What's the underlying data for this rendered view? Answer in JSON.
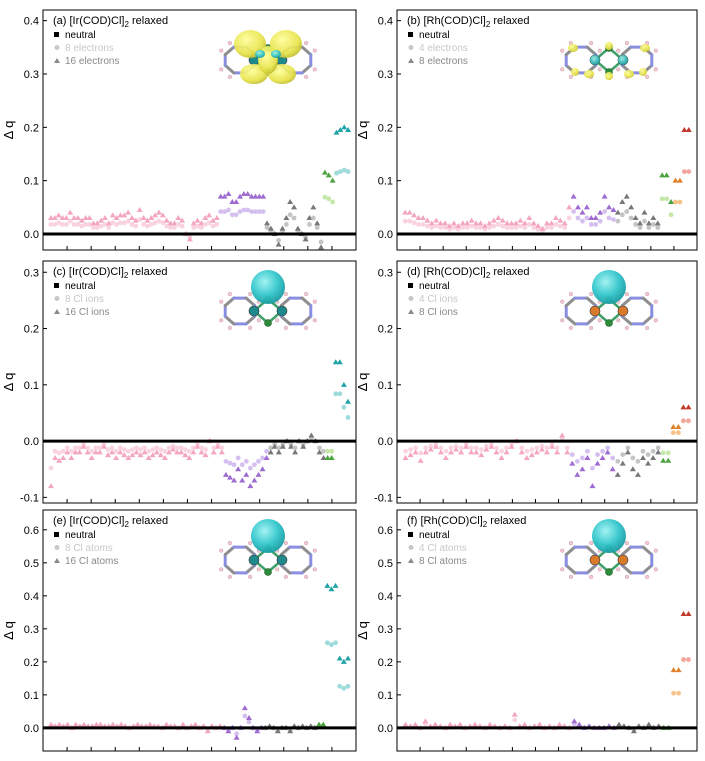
{
  "figure": {
    "ylabel": "Δ q",
    "legend_colors": {
      "neutral": "#000000",
      "light": "#c8c8c8",
      "dark": "#8a8a8a"
    },
    "baseline_color": "#000000"
  },
  "chart_data": [
    {
      "type": "scatter",
      "id": "a",
      "label_prefix": "(a) [Ir(COD)Cl]",
      "label_sub": "2",
      "label_suffix": " relaxed",
      "ylim": [
        -0.03,
        0.42
      ],
      "yticks": [
        0.0,
        0.1,
        0.2,
        0.3,
        0.4
      ],
      "ytick_labels": [
        "0.0",
        "0.1",
        "0.2",
        "0.3",
        "0.4"
      ],
      "legend": [
        "neutral",
        "8 electrons",
        "16 electrons"
      ],
      "inset": "orbital-isosurface-ir",
      "segments": [
        {
          "color": "#f4a6bf",
          "light": "#f9d3df",
          "values": [
            0.03,
            0.03,
            0.035,
            0.03,
            0.03,
            0.04,
            0.03,
            0.03,
            0.025,
            0.03,
            0.03,
            0.02,
            0.02,
            0.025,
            0.03,
            0.02,
            0.035,
            0.03,
            0.035,
            0.035,
            0.04,
            0.03,
            0.025,
            0.045,
            0.03,
            0.025,
            0.03,
            0.035,
            0.04,
            0.035,
            0.025,
            0.02,
            0.02,
            0.03,
            0.025,
            0.0,
            -0.01,
            0.02,
            0.025,
            0.02,
            0.03,
            0.035,
            0.025,
            0.03
          ]
        },
        {
          "color": "#9e6bd0",
          "light": "#d5bff0",
          "values": [
            0.07,
            0.07,
            0.075,
            0.06,
            0.06,
            0.07,
            0.075,
            0.075,
            0.07,
            0.07,
            0.07,
            0.07
          ]
        },
        {
          "color": "#777777",
          "light": "#c4c4c4",
          "values": [
            0.02,
            0.01,
            0.0,
            -0.02,
            0.01,
            0.03,
            0.06,
            0.05,
            0.01,
            0.0,
            -0.01,
            0.03,
            0.05,
            0.02,
            -0.025
          ]
        },
        {
          "color": "#4aa33e",
          "light": "#c4e8a8",
          "values": [
            0.115,
            0.11,
            0.1
          ]
        },
        {
          "color": "#1fa3a8",
          "light": "#9edbdb",
          "values": [
            0.19,
            0.195,
            0.2,
            0.195
          ]
        }
      ]
    },
    {
      "type": "scatter",
      "id": "b",
      "label_prefix": "(b) [Rh(COD)Cl]",
      "label_sub": "2",
      "label_suffix": " relaxed",
      "ylim": [
        -0.03,
        0.42
      ],
      "yticks": [
        0.0,
        0.1,
        0.2,
        0.3,
        0.4
      ],
      "ytick_labels": [
        "0.0",
        "0.1",
        "0.2",
        "0.3",
        "0.4"
      ],
      "legend": [
        "neutral",
        "4 electrons",
        "8 electrons"
      ],
      "inset": "orbital-isosurface-rh",
      "segments": [
        {
          "color": "#f4a6bf",
          "light": "#f9d3df",
          "values": [
            0.04,
            0.04,
            0.035,
            0.03,
            0.03,
            0.025,
            0.02,
            0.025,
            0.02,
            0.02,
            0.015,
            0.02,
            0.015,
            0.02,
            0.02,
            0.025,
            0.02,
            0.02,
            0.015,
            0.02,
            0.025,
            0.03,
            0.025,
            0.02,
            0.02,
            0.02,
            0.025,
            0.02,
            0.03,
            0.02,
            0.015,
            0.01,
            0.02,
            0.02,
            0.03,
            0.025,
            0.02,
            0.05
          ]
        },
        {
          "color": "#9e6bd0",
          "light": "#d5bff0",
          "values": [
            0.07,
            0.05,
            0.04,
            0.05,
            0.03,
            0.03,
            0.04,
            0.07,
            0.05,
            0.045
          ]
        },
        {
          "color": "#777777",
          "light": "#c4c4c4",
          "values": [
            0.04,
            0.06,
            0.07,
            0.05,
            0.03,
            0.02,
            0.04,
            0.02,
            0.03,
            0.02
          ]
        },
        {
          "color": "#4aa33e",
          "light": "#c4e8a8",
          "values": [
            0.11,
            0.11,
            0.06
          ]
        },
        {
          "color": "#e0802a",
          "light": "#f7c38a",
          "values": [
            0.1,
            0.1
          ]
        },
        {
          "color": "#c0392b",
          "light": "#f2a59b",
          "values": [
            0.195,
            0.195
          ]
        }
      ]
    },
    {
      "type": "scatter",
      "id": "c",
      "label_prefix": "(c) [Ir(COD)Cl]",
      "label_sub": "2",
      "label_suffix": " relaxed",
      "ylim": [
        -0.11,
        0.32
      ],
      "yticks": [
        -0.1,
        0.0,
        0.1,
        0.2,
        0.3
      ],
      "ytick_labels": [
        "-0.1",
        "0.0",
        "0.1",
        "0.2",
        "0.3"
      ],
      "legend": [
        "neutral",
        "8 Cl ions",
        "16 Cl ions"
      ],
      "inset": "cl-ion-density-ir",
      "segments": [
        {
          "color": "#f4a6bf",
          "light": "#f9d3df",
          "values": [
            -0.08,
            -0.03,
            -0.035,
            -0.03,
            -0.02,
            -0.03,
            -0.02,
            -0.02,
            -0.01,
            -0.02,
            -0.03,
            -0.02,
            -0.02,
            -0.01,
            -0.025,
            -0.02,
            -0.03,
            -0.02,
            -0.025,
            -0.03,
            -0.025,
            -0.02,
            -0.025,
            -0.02,
            -0.03,
            -0.025,
            -0.02,
            -0.025,
            -0.03,
            -0.02,
            -0.015,
            -0.02,
            -0.02,
            -0.025,
            -0.03,
            -0.02,
            -0.01,
            -0.02,
            -0.025,
            0.0,
            -0.02,
            -0.01,
            -0.02
          ]
        },
        {
          "color": "#9e6bd0",
          "light": "#d5bff0",
          "values": [
            -0.06,
            -0.065,
            -0.07,
            -0.05,
            -0.07,
            -0.06,
            -0.08,
            -0.07,
            -0.06,
            -0.05,
            -0.03
          ]
        },
        {
          "color": "#777777",
          "light": "#c4c4c4",
          "values": [
            -0.02,
            -0.01,
            -0.02,
            -0.01,
            0.0,
            -0.01,
            -0.02,
            0.0,
            -0.01,
            0.0,
            0.01,
            0.0,
            -0.02,
            -0.03
          ]
        },
        {
          "color": "#4aa33e",
          "light": "#c4e8a8",
          "values": [
            -0.03,
            -0.03
          ]
        },
        {
          "color": "#1fa3a8",
          "light": "#9edbdb",
          "values": [
            0.14,
            0.14,
            0.1,
            0.07
          ]
        }
      ]
    },
    {
      "type": "scatter",
      "id": "d",
      "label_prefix": "(d) [Rh(COD)Cl]",
      "label_sub": "2",
      "label_suffix": " relaxed",
      "ylim": [
        -0.11,
        0.32
      ],
      "yticks": [
        -0.1,
        0.0,
        0.1,
        0.2,
        0.3
      ],
      "ytick_labels": [
        "-0.1",
        "0.0",
        "0.1",
        "0.2",
        "0.3"
      ],
      "legend": [
        "neutral",
        "4 Cl ions",
        "8 Cl ions"
      ],
      "inset": "cl-ion-density-rh",
      "segments": [
        {
          "color": "#f4a6bf",
          "light": "#f9d3df",
          "values": [
            -0.03,
            -0.025,
            -0.02,
            -0.035,
            -0.02,
            -0.015,
            -0.01,
            -0.02,
            -0.03,
            -0.02,
            -0.015,
            -0.02,
            -0.01,
            -0.02,
            -0.02,
            -0.025,
            -0.015,
            -0.01,
            -0.02,
            -0.03,
            -0.02,
            -0.01,
            0.0,
            -0.02,
            -0.03,
            -0.025,
            -0.02,
            -0.015,
            -0.02,
            -0.01,
            -0.02,
            0.01,
            -0.02
          ]
        },
        {
          "color": "#9e6bd0",
          "light": "#d5bff0",
          "values": [
            -0.04,
            -0.06,
            -0.05,
            -0.03,
            -0.08,
            -0.04,
            -0.03,
            -0.02,
            -0.05
          ]
        },
        {
          "color": "#777777",
          "light": "#c4c4c4",
          "values": [
            -0.06,
            -0.04,
            -0.02,
            -0.05,
            -0.06,
            -0.03,
            -0.04,
            -0.03,
            -0.02
          ]
        },
        {
          "color": "#4aa33e",
          "light": "#c4e8a8",
          "values": [
            -0.035,
            -0.035
          ]
        },
        {
          "color": "#e0802a",
          "light": "#f7c38a",
          "values": [
            0.025,
            0.025
          ]
        },
        {
          "color": "#c0392b",
          "light": "#f2a59b",
          "values": [
            0.06,
            0.06
          ]
        }
      ]
    },
    {
      "type": "scatter",
      "id": "e",
      "label_prefix": "(e) [Ir(COD)Cl]",
      "label_sub": "2",
      "label_suffix": " relaxed",
      "ylim": [
        -0.07,
        0.66
      ],
      "yticks": [
        0.0,
        0.1,
        0.2,
        0.3,
        0.4,
        0.5,
        0.6
      ],
      "ytick_labels": [
        "0.0",
        "0.1",
        "0.2",
        "0.3",
        "0.4",
        "0.5",
        "0.6"
      ],
      "legend": [
        "neutral",
        "8 Cl atoms",
        "16 Cl atoms"
      ],
      "inset": "cl-atom-density-ir",
      "segments": [
        {
          "color": "#f4a6bf",
          "light": "#f9d3df",
          "values": [
            0.01,
            0.005,
            0.01,
            0.005,
            0.01,
            0.0,
            0.01,
            0.005,
            0.01,
            0.005,
            0.005,
            0.01,
            0.01,
            0.005,
            0.005,
            0.01,
            0.005,
            0.01,
            0.005,
            0.0,
            0.005,
            0.01,
            0.005,
            0.005,
            0.01,
            0.005,
            0.005,
            0.0,
            0.01,
            0.005,
            0.005,
            0.0,
            0.01,
            0.0,
            0.005,
            0.01,
            0.0,
            0.005,
            -0.01,
            0.005,
            0.0,
            0.005
          ]
        },
        {
          "color": "#9e6bd0",
          "light": "#d5bff0",
          "values": [
            0.0,
            -0.01,
            0.0,
            -0.03,
            0.0,
            0.06,
            0.03,
            0.0,
            -0.01,
            0.0
          ]
        },
        {
          "color": "#777777",
          "light": "#c4c4c4",
          "values": [
            0.0,
            0.005,
            0.0,
            -0.01,
            0.0,
            0.0,
            -0.01,
            0.005,
            0.0,
            0.005,
            0.0,
            0.005,
            0.0
          ]
        },
        {
          "color": "#4aa33e",
          "light": "#c4e8a8",
          "values": [
            0.01,
            0.01
          ]
        },
        {
          "color": "#1fa3a8",
          "light": "#9edbdb",
          "values": [
            0.43,
            0.42,
            0.43,
            0.21,
            0.2,
            0.21
          ]
        }
      ]
    },
    {
      "type": "scatter",
      "id": "f",
      "label_prefix": "(f) [Rh(COD)Cl]",
      "label_sub": "2",
      "label_suffix": " relaxed",
      "ylim": [
        -0.07,
        0.66
      ],
      "yticks": [
        0.0,
        0.1,
        0.2,
        0.3,
        0.4,
        0.5,
        0.6
      ],
      "ytick_labels": [
        "0.0",
        "0.1",
        "0.2",
        "0.3",
        "0.4",
        "0.5",
        "0.6"
      ],
      "legend": [
        "neutral",
        "4 Cl atoms",
        "8 Cl atoms"
      ],
      "inset": "cl-atom-density-rh",
      "segments": [
        {
          "color": "#f4a6bf",
          "light": "#f9d3df",
          "values": [
            0.01,
            0.005,
            0.01,
            0.0,
            0.02,
            0.005,
            0.01,
            0.005,
            0.0,
            0.01,
            0.005,
            0.01,
            0.0,
            0.005,
            0.01,
            0.005,
            0.0,
            0.01,
            0.005,
            0.0,
            0.005,
            0.0,
            0.04,
            0.005,
            0.01,
            0.0,
            0.005,
            0.01,
            0.0,
            0.005,
            0.0,
            0.01,
            0.005,
            0.0
          ]
        },
        {
          "color": "#9e6bd0",
          "light": "#d5bff0",
          "values": [
            0.02,
            0.01,
            0.0,
            0.005,
            0.0,
            0.0,
            0.0,
            0.005,
            0.0
          ]
        },
        {
          "color": "#777777",
          "light": "#c4c4c4",
          "values": [
            0.01,
            0.005,
            0.0,
            -0.01,
            0.005,
            0.0,
            0.01,
            0.0,
            0.005
          ]
        },
        {
          "color": "#4aa33e",
          "light": "#c4e8a8",
          "values": [
            0.0,
            0.0
          ]
        },
        {
          "color": "#e0802a",
          "light": "#f7c38a",
          "values": [
            0.175,
            0.175
          ]
        },
        {
          "color": "#c0392b",
          "light": "#f2a59b",
          "values": [
            0.345,
            0.345
          ]
        }
      ]
    }
  ]
}
